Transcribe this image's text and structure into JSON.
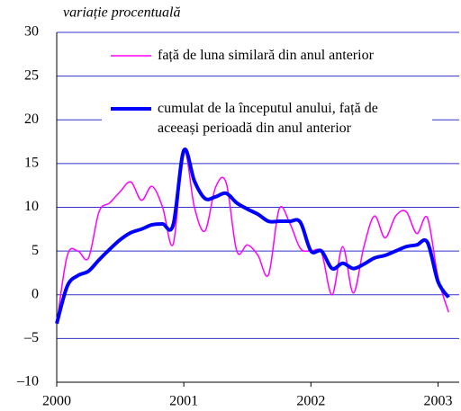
{
  "chart_data": {
    "type": "line",
    "y_label": "variație procentuală",
    "x": [
      0,
      1,
      2,
      3,
      4,
      5,
      6,
      7,
      8,
      9,
      10,
      11,
      12,
      13,
      14,
      15,
      16,
      17,
      18,
      19,
      20,
      21,
      22,
      23,
      24,
      25,
      26,
      27,
      28,
      29,
      30,
      31,
      32,
      33,
      34,
      35,
      36,
      37
    ],
    "xlim": [
      0,
      38
    ],
    "xticks": [
      {
        "value": 0,
        "label": "2000"
      },
      {
        "value": 12,
        "label": "2001"
      },
      {
        "value": 24,
        "label": "2002"
      },
      {
        "value": 36,
        "label": "2003"
      }
    ],
    "ylim": [
      -10,
      30
    ],
    "yticks": [
      {
        "value": -10,
        "label": "–10"
      },
      {
        "value": -5,
        "label": "–5"
      },
      0,
      5,
      10,
      15,
      20,
      25,
      30
    ],
    "grid": true,
    "series": [
      {
        "name": "față de luna similară din anul anterior",
        "color": "#ff00ff",
        "width": 1.5,
        "values": [
          -3.3,
          4.5,
          5,
          4.2,
          9.5,
          10.5,
          11.8,
          12.9,
          10.8,
          12.4,
          10,
          5.8,
          16.5,
          10,
          7.3,
          12.3,
          12.8,
          5,
          5.7,
          4.5,
          2.3,
          9.8,
          8.2,
          5.3,
          5,
          4.8,
          0,
          5.5,
          0.2,
          5.5,
          9,
          6.5,
          9,
          9.5,
          7,
          8.8,
          2,
          -2
        ]
      },
      {
        "name": "cumulat de la începutul anului, față de\naceeași perioadă din anul anterior",
        "color": "#0000ff",
        "width": 4,
        "values": [
          -3.3,
          1,
          2.2,
          2.7,
          4,
          5.2,
          6.3,
          7.1,
          7.5,
          8,
          8.1,
          8,
          16.5,
          13,
          11,
          11.2,
          11.6,
          10.5,
          9.8,
          9.2,
          8.4,
          8.4,
          8.4,
          8.3,
          5,
          5,
          3,
          3.6,
          3,
          3.5,
          4.2,
          4.5,
          5,
          5.5,
          5.7,
          6,
          1.5,
          -0.3
        ]
      }
    ]
  }
}
